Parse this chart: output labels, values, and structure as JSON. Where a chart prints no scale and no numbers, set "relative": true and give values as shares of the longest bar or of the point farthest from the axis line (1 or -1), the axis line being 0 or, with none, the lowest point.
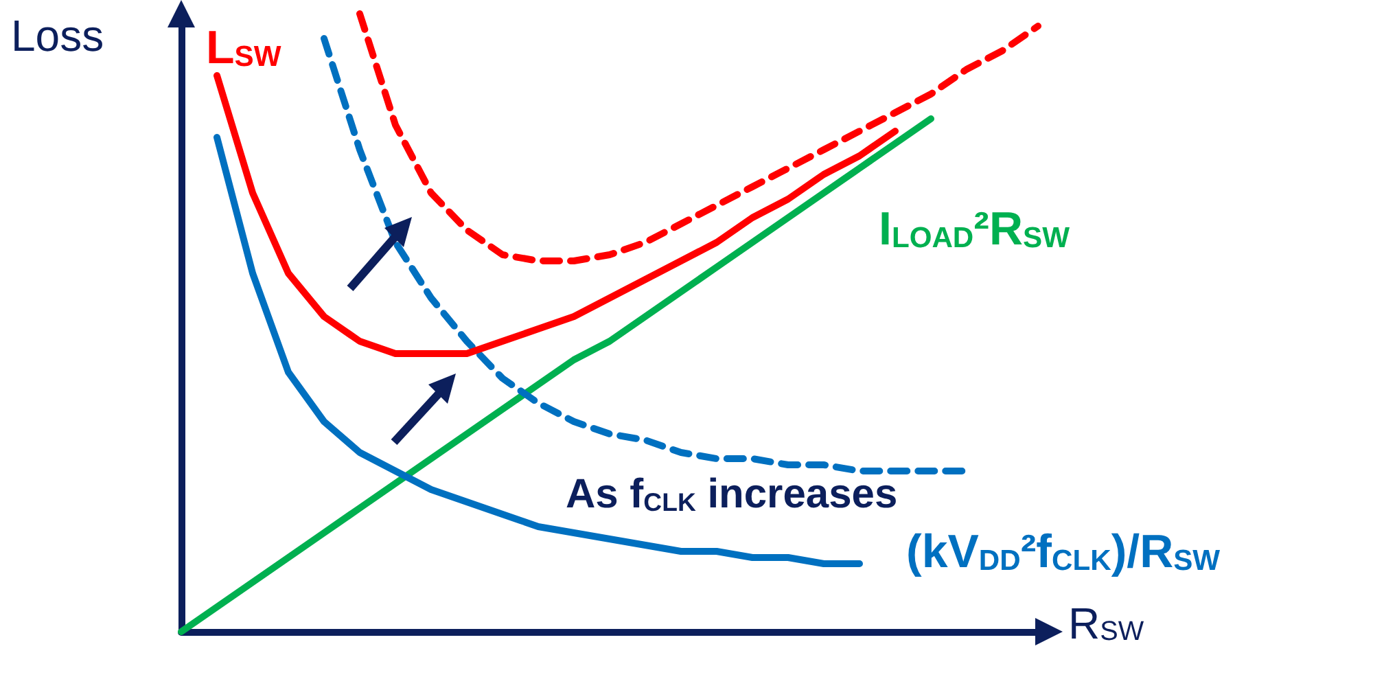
{
  "chart_data": {
    "type": "line",
    "relative": true,
    "xlabel": "R$_{SW}$",
    "ylabel": "Loss",
    "legend": false,
    "grid": false,
    "marker": "none",
    "categories": [
      null,
      null,
      null,
      null,
      null,
      null,
      null,
      null,
      null,
      null,
      null,
      null,
      null,
      null,
      null,
      null,
      null,
      null,
      null,
      null,
      null,
      null,
      null,
      null,
      null
    ],
    "series": [
      {
        "name": "I$_{LOAD}$²R$_{SW}$",
        "color": "#00b050",
        "line_style": "solid",
        "values": [
          0,
          0.04,
          0.08,
          0.12,
          0.16,
          0.2,
          0.24,
          0.28,
          0.32,
          0.36,
          0.4,
          0.44,
          0.47,
          0.51,
          0.55,
          0.59,
          0.63,
          0.67,
          0.71,
          0.75,
          0.79,
          0.83,
          null,
          null,
          null
        ]
      },
      {
        "name": "(kV$_{DD}$²f$_{CLK}$)/R$_{SW}$",
        "color": "#0070c0",
        "line_style": "solid",
        "values": [
          null,
          0.8,
          0.58,
          0.42,
          0.34,
          0.29,
          0.26,
          0.23,
          0.21,
          0.19,
          0.17,
          0.16,
          0.15,
          0.14,
          0.13,
          0.13,
          0.12,
          0.12,
          0.11,
          0.11,
          null,
          null,
          null,
          null,
          null
        ]
      },
      {
        "color": "#0070c0",
        "line_style": "dashed",
        "values": [
          null,
          null,
          null,
          null,
          0.96,
          0.78,
          0.63,
          0.54,
          0.47,
          0.41,
          0.37,
          0.34,
          0.32,
          0.31,
          0.29,
          0.28,
          0.28,
          0.27,
          0.27,
          0.26,
          0.26,
          0.26,
          0.26,
          null,
          null
        ]
      },
      {
        "name": "L$_{SW}$",
        "color": "#ff0000",
        "line_style": "solid",
        "values": [
          null,
          0.9,
          0.71,
          0.58,
          0.51,
          0.47,
          0.45,
          0.45,
          0.45,
          0.47,
          0.49,
          0.51,
          0.54,
          0.57,
          0.6,
          0.63,
          0.67,
          0.7,
          0.74,
          0.77,
          0.81,
          null,
          null,
          null,
          null
        ]
      },
      {
        "color": "#ff0000",
        "line_style": "dashed",
        "values": [
          null,
          null,
          null,
          null,
          null,
          1,
          0.82,
          0.71,
          0.65,
          0.61,
          0.6,
          0.6,
          0.61,
          0.63,
          0.66,
          0.69,
          0.72,
          0.75,
          0.78,
          0.81,
          0.84,
          0.87,
          0.91,
          0.94,
          0.98
        ]
      }
    ],
    "annotations": [
      "As f$_{CLK}$ increases"
    ]
  }
}
